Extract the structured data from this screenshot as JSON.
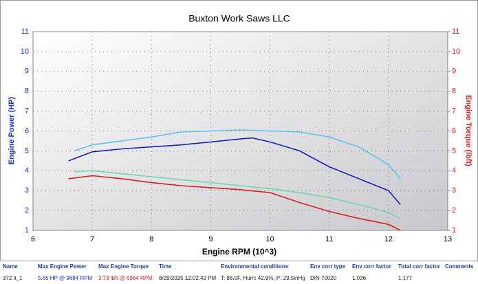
{
  "chart_data": {
    "type": "line",
    "title": "Buxton Work Saws LLC",
    "x_label": "Engine RPM (10^3)",
    "y_label": "Engine Power (HP)",
    "y2_label": "Engine Torque (lbft)",
    "xlim": [
      6,
      13
    ],
    "xticks": [
      6,
      7,
      8,
      9,
      10,
      11,
      12,
      13
    ],
    "ylim": [
      1,
      11
    ],
    "yticks": [
      1,
      2,
      3,
      4,
      5,
      6,
      7,
      8,
      9,
      10,
      11
    ],
    "y2lim": [
      1,
      11
    ],
    "y2ticks": [
      1,
      2,
      3,
      4,
      5,
      6,
      7,
      8,
      9,
      10,
      11
    ],
    "grid": true,
    "y_color": "#1a2fc0",
    "y2_color": "#d42020",
    "series": [
      {
        "color": "#1a22b8",
        "x": [
          6.6,
          7.0,
          7.5,
          8.0,
          8.5,
          9.0,
          9.5,
          9.7,
          10.0,
          10.5,
          11.0,
          11.5,
          12.0,
          12.2
        ],
        "values": [
          4.5,
          4.95,
          5.1,
          5.2,
          5.3,
          5.45,
          5.6,
          5.65,
          5.45,
          5.0,
          4.2,
          3.6,
          3.0,
          2.3
        ]
      },
      {
        "color": "#5ec4e6",
        "x": [
          6.7,
          7.0,
          7.5,
          8.0,
          8.5,
          9.0,
          9.5,
          10.0,
          10.5,
          11.0,
          11.5,
          12.0,
          12.2
        ],
        "values": [
          5.0,
          5.3,
          5.5,
          5.7,
          5.95,
          6.0,
          6.05,
          6.0,
          5.95,
          5.7,
          5.2,
          4.3,
          3.6
        ]
      },
      {
        "color": "#d42020",
        "axis": "y2",
        "x": [
          6.6,
          7.0,
          7.5,
          8.0,
          8.5,
          9.0,
          9.5,
          10.0,
          10.5,
          11.0,
          11.5,
          12.0,
          12.2
        ],
        "values": [
          3.6,
          3.75,
          3.6,
          3.4,
          3.25,
          3.15,
          3.05,
          2.9,
          2.4,
          1.95,
          1.6,
          1.3,
          1.0
        ]
      },
      {
        "color": "#6ed6b0",
        "axis": "y2",
        "x": [
          6.7,
          7.0,
          7.5,
          8.0,
          8.5,
          9.0,
          9.5,
          10.0,
          10.5,
          11.0,
          11.5,
          12.0,
          12.2
        ],
        "values": [
          3.95,
          4.0,
          3.85,
          3.7,
          3.55,
          3.4,
          3.25,
          3.1,
          2.9,
          2.65,
          2.3,
          1.9,
          1.6
        ]
      }
    ]
  },
  "table": {
    "headers": [
      "Name",
      "Max Engine Power",
      "Max Engine Torque",
      "Time",
      "Environmental conditions",
      "Env corr type",
      "Env corr factor",
      "Total corr factor",
      "Comments"
    ],
    "rows": [
      [
        "372 lt_1",
        "5.65 HP @ 9684 RPM",
        "3.73 lbft @ 6964 RPM",
        "8/29/2025 12:02:42 PM",
        "T: 86.0F, Hum: 42.9%, P: 29.5inHg",
        "DIN 70020",
        "1.036",
        "1.177"
      ]
    ]
  }
}
